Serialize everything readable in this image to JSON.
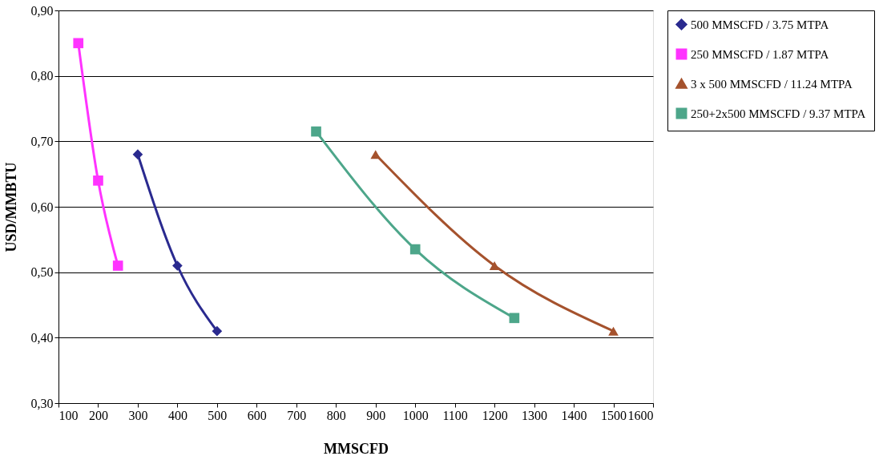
{
  "chart_data": {
    "type": "line",
    "xlabel": "MMSCFD",
    "ylabel": "USD/MMBTU",
    "xlim": [
      100,
      1600
    ],
    "xticks": [
      100,
      200,
      300,
      400,
      500,
      600,
      700,
      800,
      900,
      1000,
      1100,
      1200,
      1300,
      1400,
      1500,
      1600
    ],
    "ylim": [
      0.3,
      0.9
    ],
    "yticks": [
      {
        "value": 0.3,
        "label": "0,30"
      },
      {
        "value": 0.4,
        "label": "0,40"
      },
      {
        "value": 0.5,
        "label": "0,50"
      },
      {
        "value": 0.6,
        "label": "0,60"
      },
      {
        "value": 0.7,
        "label": "0,70"
      },
      {
        "value": 0.8,
        "label": "0,80"
      },
      {
        "value": 0.9,
        "label": "0,90"
      }
    ],
    "grid": "y",
    "legend": "top right",
    "line_style": "solid",
    "series": [
      {
        "name": "500 MMSCFD / 3.75 MTPA",
        "color": "#2a2a8f",
        "marker": "diamond",
        "x": [
          300,
          400,
          500
        ],
        "values": [
          0.68,
          0.51,
          0.41
        ]
      },
      {
        "name": "250 MMSCFD / 1.87 MTPA",
        "color": "#ff33ff",
        "marker": "square",
        "x": [
          150,
          200,
          250
        ],
        "values": [
          0.85,
          0.64,
          0.51
        ]
      },
      {
        "name": "3 x 500 MMSCFD / 11.24 MTPA",
        "color": "#a5522d",
        "marker": "triangle",
        "x": [
          900,
          1200,
          1500
        ],
        "values": [
          0.68,
          0.51,
          0.41
        ]
      },
      {
        "name": "250+2x500 MMSCFD / 9.37 MTPA",
        "color": "#4da68a",
        "marker": "square",
        "x": [
          750,
          1000,
          1250
        ],
        "values": [
          0.715,
          0.535,
          0.43
        ]
      }
    ]
  }
}
